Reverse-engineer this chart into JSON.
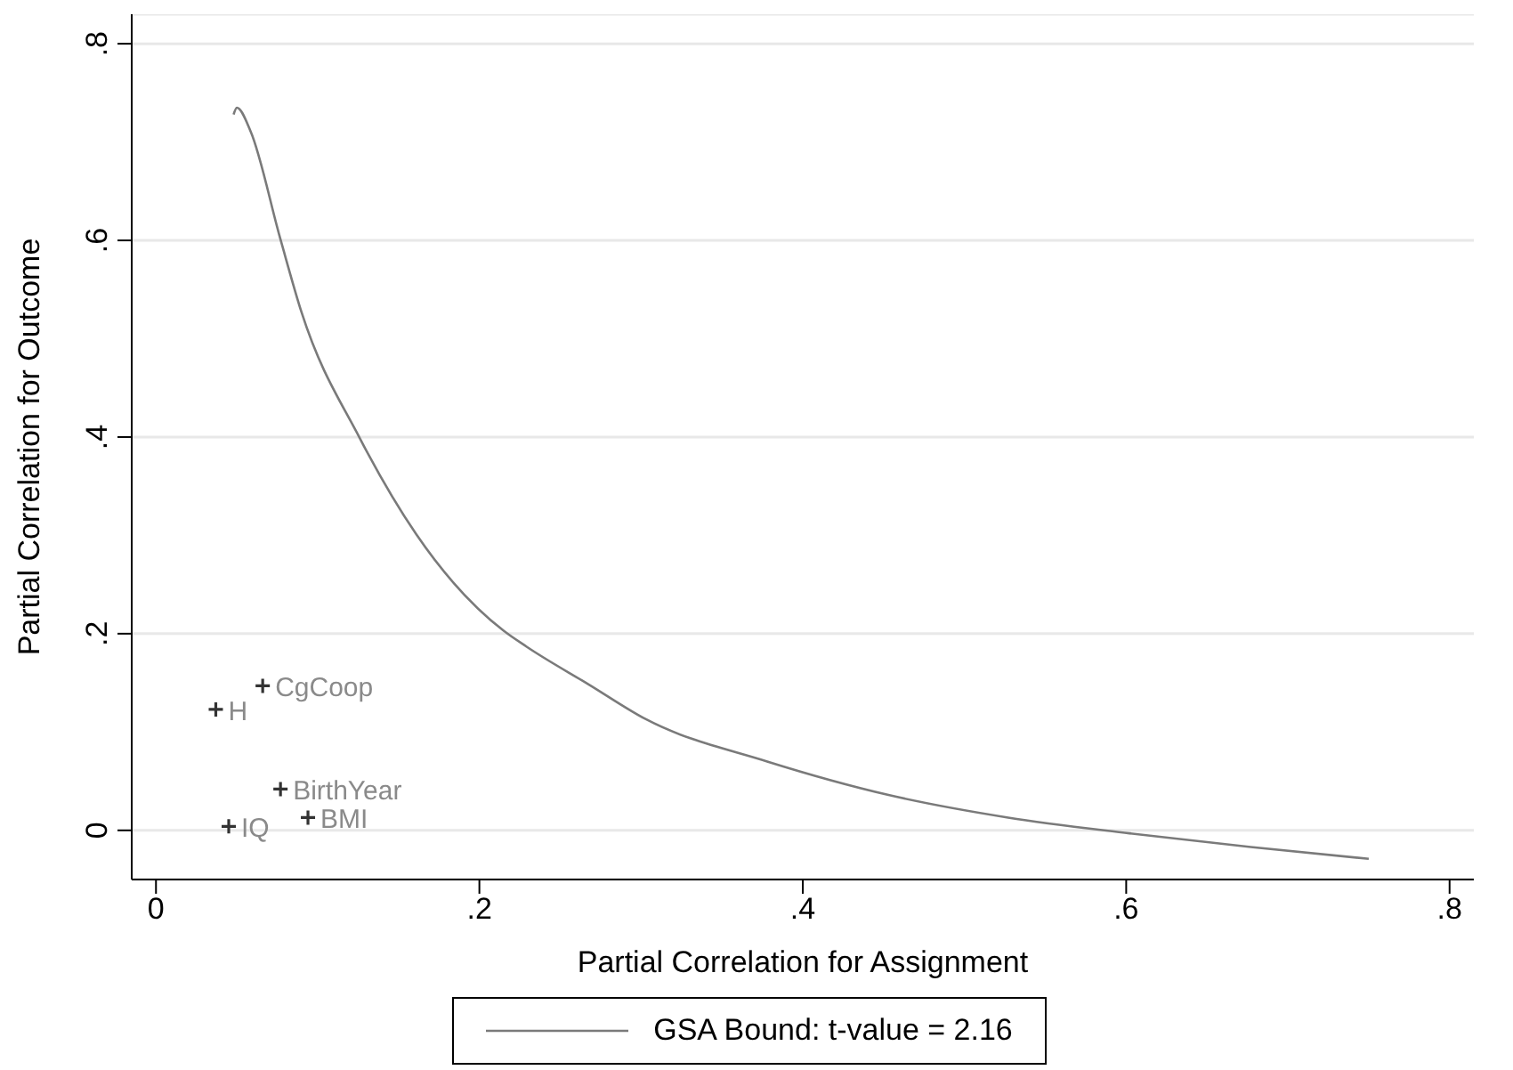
{
  "chart_data": {
    "type": "line",
    "xlabel": "Partial Correlation for Assignment",
    "ylabel": "Partial Correlation for Outcome",
    "xlim": [
      -0.015,
      0.815
    ],
    "ylim": [
      -0.05,
      0.83
    ],
    "xticks": [
      0,
      {
        "value": 0.2,
        "label": ".2"
      },
      {
        "value": 0.4,
        "label": ".4"
      },
      {
        "value": 0.6,
        "label": ".6"
      },
      {
        "value": 0.8,
        "label": ".8"
      }
    ],
    "yticks": [
      0,
      {
        "value": 0.2,
        "label": ".2"
      },
      {
        "value": 0.4,
        "label": ".4"
      },
      {
        "value": 0.6,
        "label": ".6"
      },
      {
        "value": 0.8,
        "label": ".8"
      }
    ],
    "grid": "y",
    "legend": "bottom",
    "series": [
      {
        "name": "GSA Bound: t-value = 2.16",
        "color": "#7a7a7a",
        "line_style": "solid",
        "marker": "none",
        "x": [
          0.048,
          0.05,
          0.0585,
          0.077,
          0.09,
          0.126,
          0.161,
          0.215,
          0.229,
          0.268,
          0.303,
          0.378,
          0.453,
          0.527,
          0.602,
          0.677,
          0.75
        ],
        "values": [
          0.728,
          0.735,
          0.711,
          0.601,
          0.527,
          0.399,
          0.301,
          0.203,
          0.187,
          0.148,
          0.113,
          0.07,
          0.036,
          0.013,
          -0.003,
          -0.017,
          -0.029
        ]
      },
      {
        "type": "scatter",
        "color": "#333333",
        "marker": "cross",
        "x": [
          0.037,
          0.066,
          0.077,
          0.094,
          0.045
        ],
        "values": [
          0.123,
          0.147,
          0.042,
          0.013,
          0.004
        ]
      }
    ],
    "annotations": [
      {
        "text": "H",
        "x": 0.037,
        "y": 0.123
      },
      {
        "text": "CgCoop",
        "x": 0.066,
        "y": 0.147
      },
      {
        "text": "BirthYear",
        "x": 0.077,
        "y": 0.042
      },
      {
        "text": "BMI",
        "x": 0.094,
        "y": 0.013
      },
      {
        "text": "IQ",
        "x": 0.045,
        "y": 0.004
      }
    ]
  }
}
